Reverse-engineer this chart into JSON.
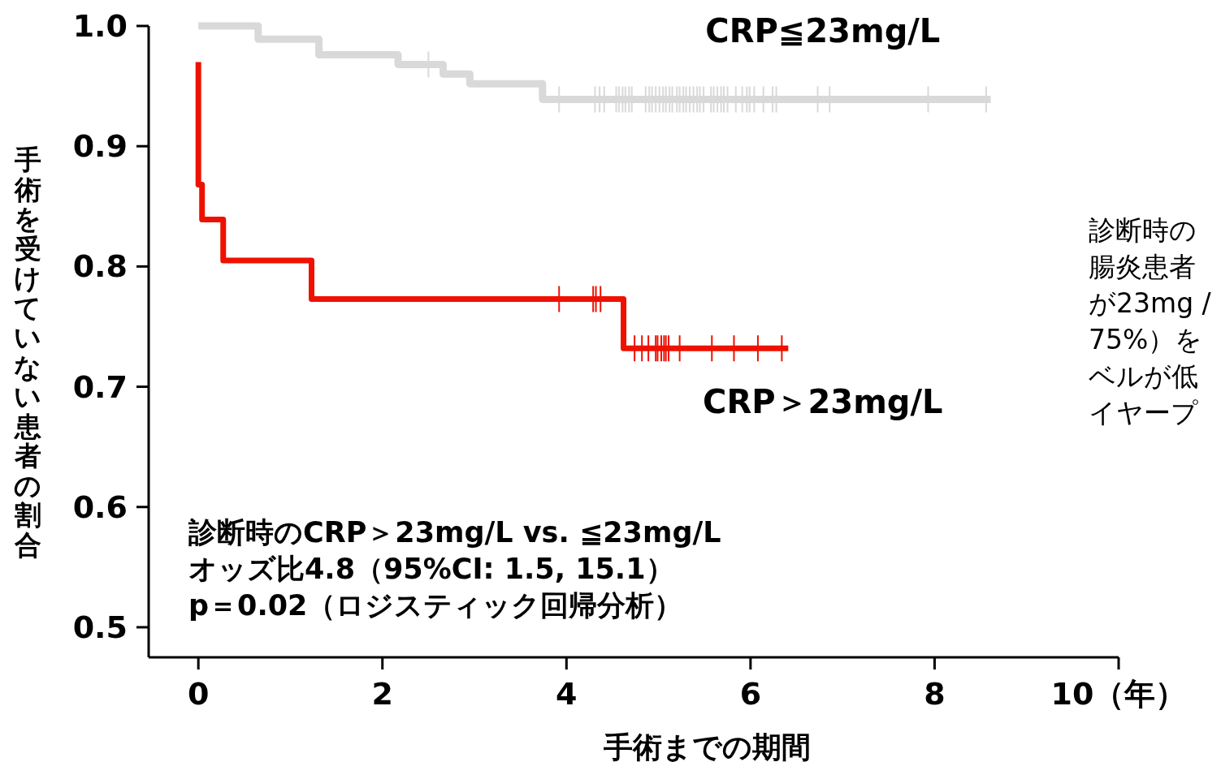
{
  "chart_data": {
    "type": "step",
    "xlabel": "手術までの期間",
    "ylabel": "手術を受けていない患者の割合",
    "xlim": [
      -0.54,
      10
    ],
    "ylim": [
      0.475,
      1.0
    ],
    "xticks": [
      0,
      2,
      4,
      6,
      8,
      {
        "value": 10,
        "label": "10（年）"
      }
    ],
    "yticks": [
      {
        "value": 0.5,
        "label": "0.5"
      },
      {
        "value": 0.6,
        "label": "0.6"
      },
      {
        "value": 0.7,
        "label": "0.7"
      },
      {
        "value": 0.8,
        "label": "0.8"
      },
      {
        "value": 0.9,
        "label": "0.9"
      },
      {
        "value": 1.0,
        "label": "1.0"
      }
    ],
    "grid": false,
    "legend": "right",
    "series": [
      {
        "name": "CRP≦23mg/L",
        "color": "#d9d9d9",
        "x": [
          0,
          0.65,
          1.31,
          2.17,
          2.66,
          2.95,
          3.74,
          8.61
        ],
        "values": [
          1.0,
          0.989,
          0.976,
          0.968,
          0.96,
          0.952,
          0.939,
          0.939
        ]
      },
      {
        "name": "CRP＞23mg/L",
        "color": "#ee1100",
        "x": [
          0,
          0,
          0.04,
          0.27,
          1.23,
          4.62,
          6.41
        ],
        "values": [
          0.97,
          0.868,
          0.839,
          0.805,
          0.773,
          0.732,
          0.732
        ]
      },
      {
        "type": "scatter",
        "marker": "cross",
        "color": "#d9d9d9",
        "x": [
          2.5,
          3.92,
          4.31,
          4.36,
          4.41,
          4.54,
          4.57,
          4.61,
          4.64,
          4.68,
          4.71,
          4.86,
          4.9,
          4.93,
          4.97,
          5.01,
          5.05,
          5.08,
          5.12,
          5.15,
          5.2,
          5.23,
          5.27,
          5.3,
          5.34,
          5.38,
          5.42,
          5.45,
          5.49,
          5.57,
          5.6,
          5.64,
          5.68,
          5.71,
          5.75,
          5.84,
          5.91,
          5.96,
          5.99,
          6.04,
          6.14,
          6.24,
          6.28,
          6.73,
          6.86,
          7.93,
          8.56
        ],
        "values": [
          0.968,
          0.939,
          0.939,
          0.939,
          0.939,
          0.939,
          0.939,
          0.939,
          0.939,
          0.939,
          0.939,
          0.939,
          0.939,
          0.939,
          0.939,
          0.939,
          0.939,
          0.939,
          0.939,
          0.939,
          0.939,
          0.939,
          0.939,
          0.939,
          0.939,
          0.939,
          0.939,
          0.939,
          0.939,
          0.939,
          0.939,
          0.939,
          0.939,
          0.939,
          0.939,
          0.939,
          0.939,
          0.939,
          0.939,
          0.939,
          0.939,
          0.939,
          0.939,
          0.939,
          0.939,
          0.939,
          0.939
        ]
      },
      {
        "type": "scatter",
        "marker": "cross",
        "color": "#ee1100",
        "x": [
          3.92,
          4.29,
          4.32,
          4.37,
          4.74,
          4.82,
          4.89,
          4.97,
          4.99,
          5.03,
          5.06,
          5.08,
          5.11,
          5.23,
          5.58,
          5.82,
          6.08,
          6.34
        ],
        "values": [
          0.773,
          0.773,
          0.773,
          0.773,
          0.732,
          0.732,
          0.732,
          0.732,
          0.732,
          0.732,
          0.732,
          0.732,
          0.732,
          0.732,
          0.732,
          0.732,
          0.732,
          0.732
        ]
      }
    ],
    "annotations": [
      "診断時のCRP＞23mg/L vs. ≦23mg/L",
      "オッズ比4.8（95%CI: 1.5, 15.1）",
      "p＝0.02（ロジスティック回帰分析）",
      "診断時の",
      "腸炎患者",
      "が23mg /",
      "75%）を",
      "ベルが低",
      "イヤープ"
    ]
  }
}
